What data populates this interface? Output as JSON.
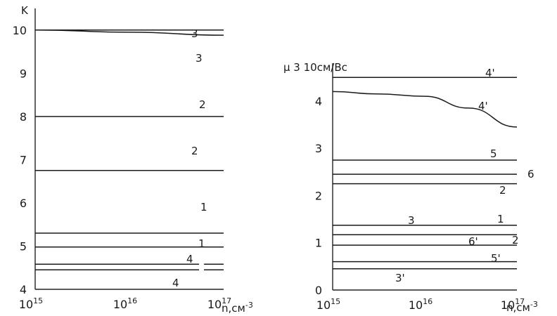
{
  "chart_data": [
    {
      "type": "line",
      "xscale": "log",
      "xlim": [
        1000000000000000.0,
        1e+17
      ],
      "ylim": [
        4,
        10.5
      ],
      "ylabel": "K",
      "xlabel": "n,см",
      "xlabel_exp": "-3",
      "x_ticks": [
        {
          "value": 1000000000000000.0,
          "base": "10",
          "exp": "15"
        },
        {
          "value": 1e+16,
          "base": "10",
          "exp": "16"
        },
        {
          "value": 1e+17,
          "base": "10",
          "exp": "17"
        }
      ],
      "y_ticks": [
        {
          "value": 4,
          "label": "4"
        },
        {
          "value": 5,
          "label": "5"
        },
        {
          "value": 6,
          "label": "6"
        },
        {
          "value": 7,
          "label": "7"
        },
        {
          "value": 8,
          "label": "8"
        },
        {
          "value": 9,
          "label": "9"
        },
        {
          "value": 10,
          "label": "10"
        }
      ],
      "series": [
        {
          "name": "3",
          "points": [
            [
              1000000000000000.0,
              10.0
            ],
            [
              1e+17,
              10.0
            ]
          ],
          "label_pos": "above"
        },
        {
          "name": "3",
          "points": [
            [
              1000000000000000.0,
              10.0
            ],
            [
              1e+16,
              9.95
            ],
            [
              1e+17,
              9.88
            ]
          ],
          "label_pos": "below"
        },
        {
          "name": "2",
          "points": [
            [
              1000000000000000.0,
              8.0
            ],
            [
              1e+17,
              8.0
            ]
          ],
          "label_pos": "above"
        },
        {
          "name": "2",
          "points": [
            [
              1000000000000000.0,
              6.75
            ],
            [
              1e+17,
              6.75
            ]
          ],
          "label_pos": "above"
        },
        {
          "name": "1",
          "points": [
            [
              1000000000000000.0,
              5.3
            ],
            [
              1e+17,
              5.3
            ]
          ],
          "label_pos": "above"
        },
        {
          "name": "1",
          "points": [
            [
              1000000000000000.0,
              4.98
            ],
            [
              1e+17,
              4.98
            ]
          ],
          "label_pos": "above"
        },
        {
          "name": "4",
          "points": [
            [
              1000000000000000.0,
              4.58
            ],
            [
              1e+17,
              4.58
            ]
          ],
          "label_pos": "above"
        },
        {
          "name": "4",
          "points": [
            [
              1000000000000000.0,
              4.45
            ],
            [
              1e+17,
              4.45
            ]
          ],
          "label_pos": "below"
        }
      ]
    },
    {
      "type": "line",
      "xscale": "log",
      "xlim": [
        1000000000000000.0,
        1e+17
      ],
      "ylim": [
        0,
        4.8
      ],
      "ylabel": "μ 3 10см/Вс",
      "xlabel": "n,см",
      "xlabel_exp": "-3",
      "x_ticks": [
        {
          "value": 1000000000000000.0,
          "base": "10",
          "exp": "15"
        },
        {
          "value": 1e+16,
          "base": "10",
          "exp": "16"
        },
        {
          "value": 1e+17,
          "base": "10",
          "exp": "17"
        }
      ],
      "y_ticks": [
        {
          "value": 0,
          "label": "0"
        },
        {
          "value": 1,
          "label": "1"
        },
        {
          "value": 2,
          "label": "2"
        },
        {
          "value": 3,
          "label": "3"
        },
        {
          "value": 4,
          "label": "4"
        }
      ],
      "series": [
        {
          "name": "4'",
          "points": [
            [
              1000000000000000.0,
              4.5
            ],
            [
              1e+17,
              4.5
            ]
          ],
          "label_pos": "above"
        },
        {
          "name": "4'",
          "points": [
            [
              1000000000000000.0,
              4.2
            ],
            [
              3000000000000000.0,
              4.15
            ],
            [
              1e+16,
              4.1
            ],
            [
              3e+16,
              3.85
            ],
            [
              1e+17,
              3.45
            ]
          ],
          "label_pos": "above"
        },
        {
          "name": "5",
          "points": [
            [
              1000000000000000.0,
              2.75
            ],
            [
              1e+17,
              2.75
            ]
          ],
          "label_pos": "above"
        },
        {
          "name": "6",
          "points": [
            [
              1000000000000000.0,
              2.45
            ],
            [
              1e+17,
              2.45
            ]
          ],
          "label_pos": "right"
        },
        {
          "name": "2",
          "points": [
            [
              1000000000000000.0,
              2.25
            ],
            [
              1e+17,
              2.25
            ]
          ],
          "label_pos": "below"
        },
        {
          "name": "3",
          "points": [
            [
              1000000000000000.0,
              1.37
            ],
            [
              1e+17,
              1.37
            ]
          ],
          "label_pos": "above"
        },
        {
          "name": "1",
          "points": [
            [
              1000000000000000.0,
              1.37
            ],
            [
              1e+17,
              1.37
            ]
          ],
          "label_pos": "above"
        },
        {
          "name": "2",
          "points": [
            [
              1000000000000000.0,
              1.17
            ],
            [
              1e+17,
              1.17
            ]
          ],
          "label_pos": "below"
        },
        {
          "name": "6'",
          "points": [
            [
              1000000000000000.0,
              0.95
            ],
            [
              1e+17,
              0.95
            ]
          ],
          "label_pos": "above"
        },
        {
          "name": "5'",
          "points": [
            [
              1000000000000000.0,
              0.6
            ],
            [
              1e+17,
              0.6
            ]
          ],
          "label_pos": "above"
        },
        {
          "name": "3'",
          "points": [
            [
              1000000000000000.0,
              0.45
            ],
            [
              1e+17,
              0.45
            ]
          ],
          "label_pos": "below"
        }
      ]
    }
  ]
}
